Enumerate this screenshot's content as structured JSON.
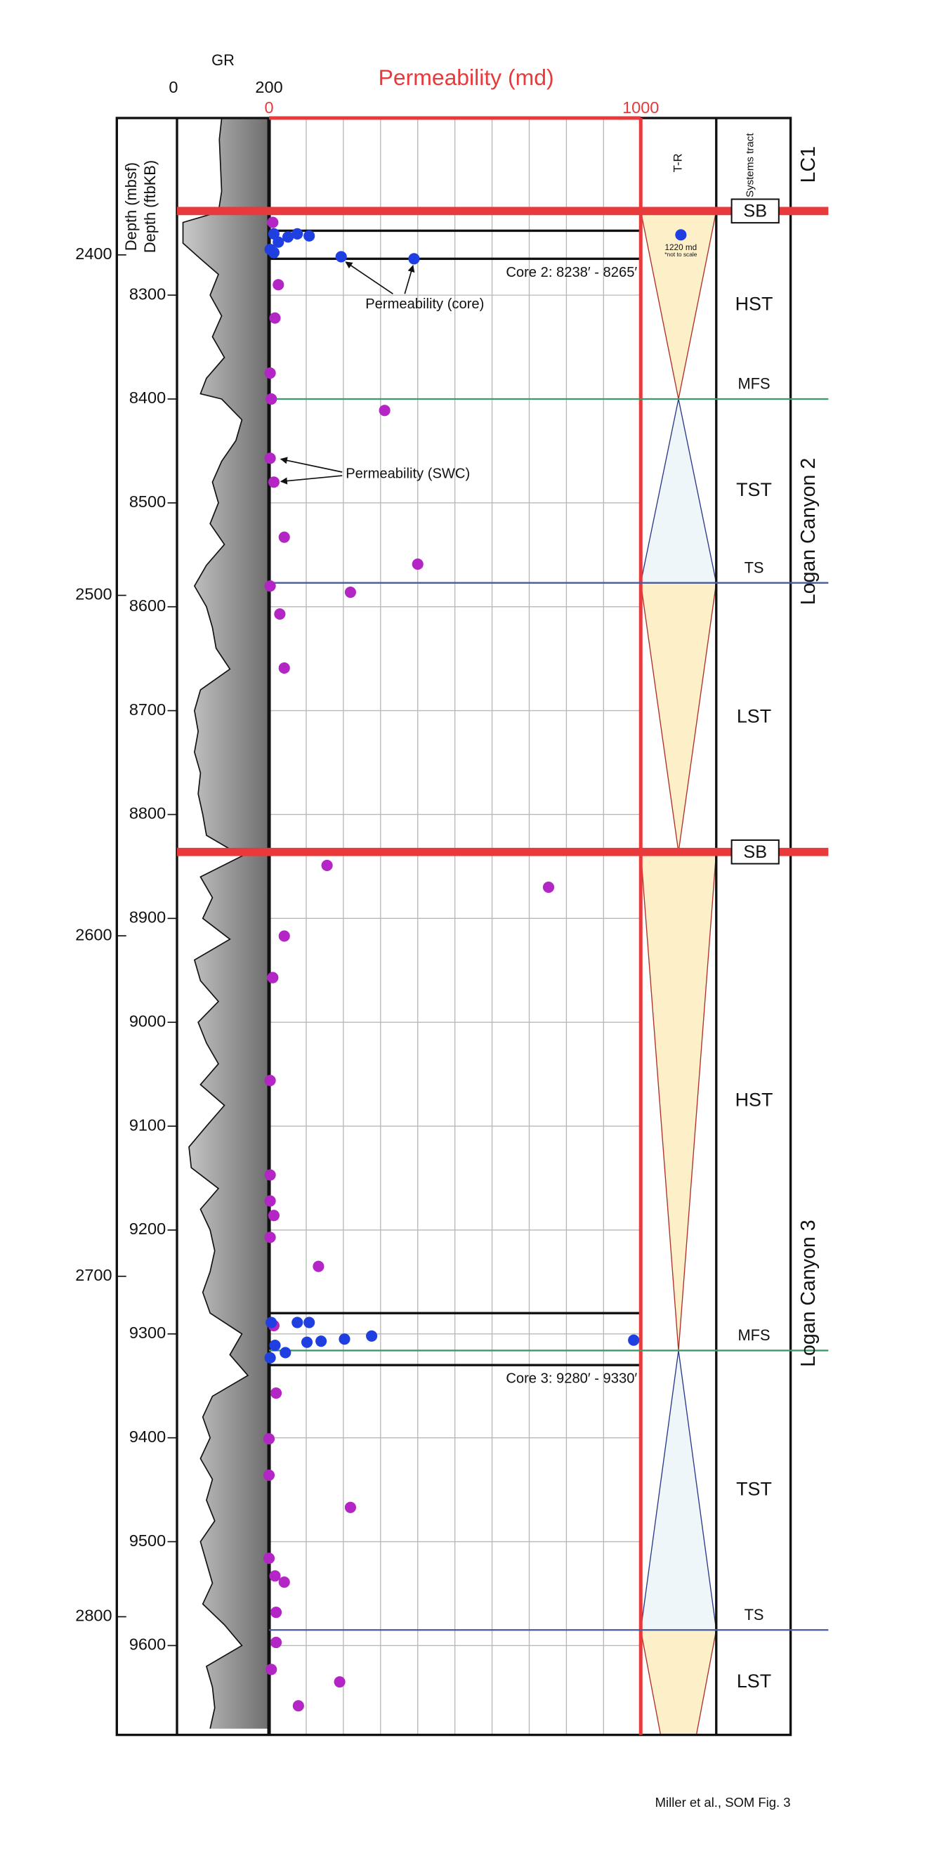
{
  "chart_data": {
    "type": "log",
    "xlabel": "Permeability (md)",
    "xlim": [
      0,
      1000
    ],
    "xticks": [
      0,
      1000
    ],
    "xminor": [
      100,
      200,
      300,
      400,
      500,
      600,
      700,
      800,
      900
    ],
    "ylabel": "Depth  (ftbKB)",
    "ylim": [
      8129.5,
      9686
    ],
    "yticks": [
      8300,
      8400,
      8500,
      8600,
      8700,
      8800,
      8900,
      9000,
      9100,
      9200,
      9300,
      9400,
      9500,
      9600
    ],
    "y2label": "Depth (mbsf)",
    "y2lim": [
      2359.8,
      2834.7
    ],
    "y2ticks": [
      2400,
      2500,
      2600,
      2700,
      2800
    ],
    "grid": true,
    "gr": {
      "label": "GR",
      "xlim": [
        0,
        200
      ],
      "xticks": [
        0,
        200
      ],
      "color": "#111111",
      "depth": [
        8130,
        8150,
        8180,
        8200,
        8220,
        8230,
        8250,
        8265,
        8280,
        8300,
        8320,
        8340,
        8360,
        8380,
        8395,
        8400,
        8420,
        8440,
        8460,
        8480,
        8500,
        8520,
        8540,
        8560,
        8580,
        8600,
        8620,
        8640,
        8660,
        8680,
        8700,
        8720,
        8740,
        8760,
        8780,
        8800,
        8820,
        8840,
        8860,
        8880,
        8900,
        8920,
        8940,
        8960,
        8980,
        9000,
        9020,
        9040,
        9060,
        9080,
        9100,
        9120,
        9140,
        9160,
        9180,
        9200,
        9220,
        9240,
        9260,
        9280,
        9300,
        9320,
        9340,
        9360,
        9380,
        9400,
        9420,
        9440,
        9460,
        9480,
        9500,
        9520,
        9540,
        9560,
        9580,
        9600,
        9620,
        9640,
        9660,
        9680
      ],
      "values": [
        97,
        92,
        95,
        97,
        90,
        13,
        13,
        51,
        90,
        72,
        97,
        77,
        103,
        64,
        51,
        97,
        141,
        128,
        97,
        77,
        90,
        72,
        103,
        64,
        38,
        64,
        77,
        85,
        115,
        51,
        38,
        46,
        38,
        51,
        46,
        56,
        64,
        141,
        51,
        77,
        56,
        115,
        38,
        51,
        90,
        46,
        64,
        90,
        51,
        103,
        64,
        26,
        31,
        90,
        51,
        72,
        82,
        72,
        56,
        72,
        141,
        115,
        154,
        77,
        56,
        72,
        51,
        77,
        64,
        82,
        51,
        64,
        77,
        56,
        103,
        141,
        64,
        77,
        82,
        72
      ]
    },
    "series": [
      {
        "name": "Permeability (SWC)",
        "color": "#b325c4",
        "x": [
          10,
          25,
          16,
          3,
          6,
          311,
          3,
          13,
          41,
          400,
          3,
          219,
          29,
          41,
          156,
          752,
          41,
          10,
          3,
          3,
          3,
          13,
          3,
          133,
          13,
          19,
          0,
          0,
          219,
          0,
          16,
          41,
          19,
          19,
          6,
          190,
          79
        ],
        "y": [
          8230,
          8290,
          8322,
          8375,
          8400,
          8411,
          8457,
          8480,
          8533,
          8559,
          8580,
          8586,
          8607,
          8659,
          8849,
          8870,
          8917,
          8957,
          9056,
          9147,
          9172,
          9186,
          9207,
          9235,
          9292,
          9357,
          9401,
          9436,
          9467,
          9516,
          9533,
          9539,
          9568,
          9597,
          9623,
          9635,
          9658
        ]
      },
      {
        "name": "Permeability (core)",
        "color": "#1f3fe0",
        "x": [
          13,
          25,
          51,
          76,
          108,
          194,
          390,
          3,
          13,
          6,
          16,
          76,
          108,
          102,
          140,
          203,
          276,
          44,
          981,
          3
        ],
        "y": [
          8241,
          8249,
          8244,
          8241,
          8243,
          8263,
          8265,
          8256,
          8259,
          9289,
          9311,
          9289,
          9289,
          9308,
          9307,
          9305,
          9302,
          9318,
          9306,
          9323
        ]
      }
    ],
    "off_scale": {
      "value": 1220,
      "value_label": "1220 md",
      "depth": 8242,
      "note": "*not to scale"
    },
    "cores": [
      {
        "label": "Core 2: 8238′ - 8265′",
        "top": 8238,
        "base": 8265
      },
      {
        "label": "Core 3: 9280′ - 9330′",
        "top": 9280,
        "base": 9330
      }
    ],
    "tr_label": "T-R",
    "tract_header": "Systems tract",
    "surfaces": [
      {
        "label": "SB",
        "depth": 8219,
        "color": "#e8393b"
      },
      {
        "label": "MFS",
        "depth": 8400,
        "color": "#3a9a6a"
      },
      {
        "label": "TS",
        "depth": 8577,
        "color": "#4a5a9a"
      },
      {
        "label": "SB",
        "depth": 8836,
        "color": "#e8393b"
      },
      {
        "label": "MFS",
        "depth": 9316,
        "color": "#3a9a6a"
      },
      {
        "label": "TS",
        "depth": 9585,
        "color": "#4a5a9a"
      }
    ],
    "tracts": [
      "HST",
      "TST",
      "LST",
      "HST",
      "TST",
      "LST"
    ],
    "units": [
      "LC1",
      "Logan Canyon 2",
      "Logan Canyon 3"
    ],
    "credit": "Miller et al., SOM Fig. 3"
  }
}
